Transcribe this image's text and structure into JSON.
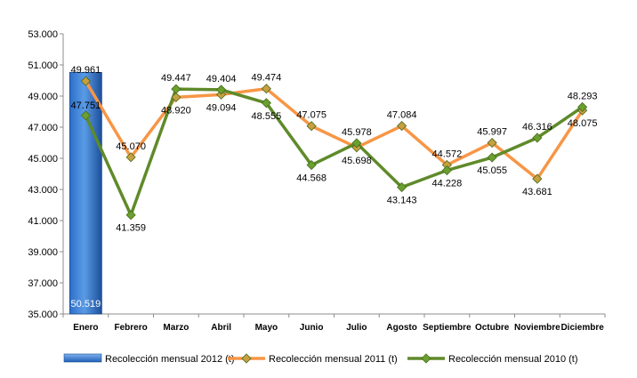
{
  "chart_data": {
    "type": "line",
    "categories": [
      "Enero",
      "Febrero",
      "Marzo",
      "Abril",
      "Mayo",
      "Junio",
      "Julio",
      "Agosto",
      "Septiembre",
      "Octubre",
      "Noviembre",
      "Diciembre"
    ],
    "ylim": [
      35000,
      53000
    ],
    "yticks": [
      35000,
      37000,
      39000,
      41000,
      43000,
      45000,
      47000,
      49000,
      51000,
      53000
    ],
    "ytick_labels": [
      "35.000",
      "37.000",
      "39.000",
      "41.000",
      "43.000",
      "45.000",
      "47.000",
      "49.000",
      "51.000",
      "53.000"
    ],
    "grid": false,
    "legend_position": "bottom",
    "series": [
      {
        "name": "Recolección mensual 2012 (t)",
        "type": "bar",
        "color": "#1f5fb8",
        "values": [
          50519,
          null,
          null,
          null,
          null,
          null,
          null,
          null,
          null,
          null,
          null,
          null
        ],
        "labels": [
          "50.519",
          "",
          "",
          "",
          "",
          "",
          "",
          "",
          "",
          "",
          "",
          ""
        ]
      },
      {
        "name": "Recolección mensual 2011 (t)",
        "type": "line",
        "color": "#f79646",
        "marker_color": "#c8a040",
        "values": [
          49961,
          45070,
          48920,
          49094,
          49474,
          47075,
          45698,
          47084,
          44572,
          45997,
          43681,
          48075
        ],
        "labels": [
          "49.961",
          "45.070",
          "48.920",
          "49.094",
          "49.474",
          "47.075",
          "45.698",
          "47.084",
          "44.572",
          "45.997",
          "43.681",
          "48.075"
        ]
      },
      {
        "name": "Recolección mensual 2010 (t)",
        "type": "line",
        "color": "#5f8a2a",
        "marker_color": "#6aa02e",
        "values": [
          47751,
          41359,
          49447,
          49404,
          48555,
          44568,
          45978,
          43143,
          44228,
          45055,
          46316,
          48293
        ],
        "labels": [
          "47.751",
          "41.359",
          "49.447",
          "49.404",
          "48.555",
          "44.568",
          "45.978",
          "43.143",
          "44.228",
          "45.055",
          "46.316",
          "48.293"
        ]
      }
    ]
  }
}
